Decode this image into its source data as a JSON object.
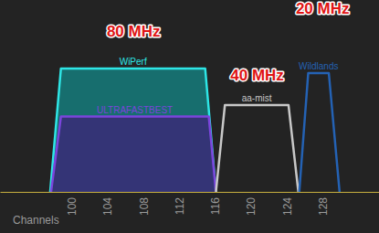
{
  "chart_data": {
    "type": "area",
    "x_label": "Channels",
    "xlim": [
      92,
      134.3
    ],
    "xticks": [
      100,
      104,
      108,
      112,
      116,
      120,
      124,
      128
    ],
    "ylim": [
      -100,
      -20
    ],
    "tick_labels": "x",
    "grid": false,
    "series": [
      {
        "name": "WiPerf",
        "color": "#2ee6e6",
        "x": [
          97.6,
          98.8,
          114.9,
          116.1
        ],
        "values": [
          -100,
          -46,
          -46,
          -100
        ]
      },
      {
        "name": "ULTRAFASTBEST",
        "color": "#7b45dc",
        "x": [
          97.7,
          98.8,
          115.3,
          116.1
        ],
        "values": [
          -100,
          -67,
          -67,
          -100
        ]
      },
      {
        "name": "aa-mist",
        "color": "#c8c8c8",
        "x": [
          116.1,
          117.1,
          124.2,
          125.3
        ],
        "values": [
          -100,
          -62,
          -62,
          -100
        ]
      },
      {
        "name": "Wildlands",
        "color": "#2462b4",
        "x": [
          125.4,
          126.4,
          128.7,
          129.9
        ],
        "values": [
          -100,
          -48,
          -48,
          -100
        ]
      }
    ],
    "annotations": [
      {
        "text": "80 MHz",
        "x": 106.9,
        "y": -32
      },
      {
        "text": "40 MHz",
        "x": 120.7,
        "y": -51
      },
      {
        "text": "20 MHz",
        "x": 128.0,
        "y": -22
      }
    ]
  }
}
